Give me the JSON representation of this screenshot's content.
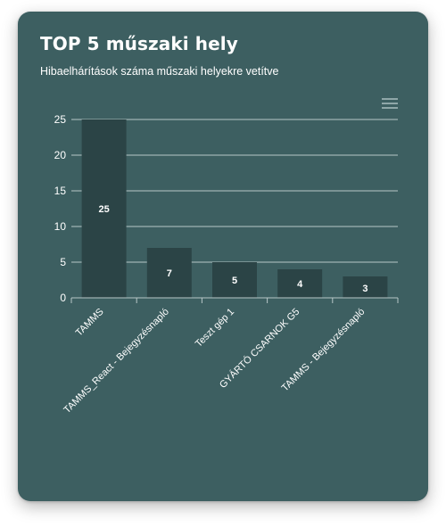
{
  "header": {
    "title": "TOP 5 műszaki hely",
    "subtitle": "Hibaelhárítások száma műszaki helyekre vetítve"
  },
  "toolbar": {
    "menu_icon": "hamburger-menu-icon"
  },
  "colors": {
    "card_background": "#3d5f61",
    "bar_fill": "#2b4446",
    "grid_line": "#b8c7c8",
    "text": "#ffffff"
  },
  "chart_data": {
    "type": "bar",
    "categories": [
      "TAMMS",
      "TAMMS_React - Bejegyzésnapló",
      "Teszt gép 1",
      "GYÁRTÓ CSARNOK G5",
      "TAMMS - Bejegyzésnapló"
    ],
    "values": [
      25,
      7,
      5,
      4,
      3
    ],
    "yticks": [
      0,
      5,
      10,
      15,
      20,
      25
    ],
    "ylim": [
      0,
      25
    ],
    "grid": true,
    "data_labels": true,
    "legend": false
  }
}
